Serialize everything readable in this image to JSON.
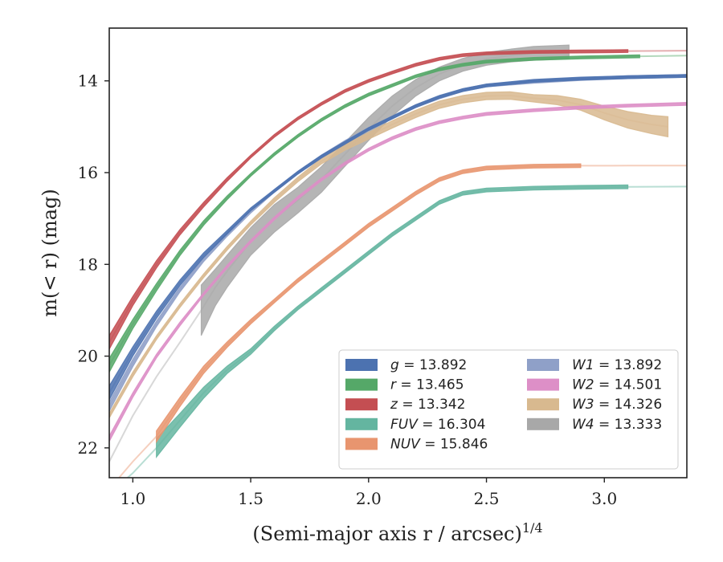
{
  "chart_data": {
    "type": "line",
    "xlabel": "(Semi-major axis r / arcsec)",
    "xlabel_exponent": "1/4",
    "ylabel": "m(< r) (mag)",
    "xlim": [
      0.9,
      3.35
    ],
    "ylim": [
      22.65,
      12.85
    ],
    "y_inverted": true,
    "x_ticks": [
      1.0,
      1.5,
      2.0,
      2.5,
      3.0
    ],
    "x_tick_labels": [
      "1.0",
      "1.5",
      "2.0",
      "2.5",
      "3.0"
    ],
    "y_ticks": [
      14,
      16,
      18,
      20,
      22
    ],
    "y_tick_labels": [
      "14",
      "16",
      "18",
      "20",
      "22"
    ],
    "grid": false,
    "legend_position": "lower-right",
    "series": [
      {
        "name": "g",
        "total": "13.892",
        "color": "#4c72b0",
        "kind": "band",
        "xmax_solid": 3.35,
        "x": [
          0.9,
          1.0,
          1.1,
          1.2,
          1.3,
          1.4,
          1.5,
          1.6,
          1.7,
          1.8,
          1.9,
          2.0,
          2.1,
          2.2,
          2.3,
          2.4,
          2.5,
          2.7,
          2.9,
          3.1,
          3.35
        ],
        "y": [
          20.8,
          19.9,
          19.1,
          18.4,
          17.8,
          17.3,
          16.8,
          16.4,
          16.0,
          15.65,
          15.35,
          15.05,
          14.8,
          14.55,
          14.35,
          14.2,
          14.1,
          14.0,
          13.95,
          13.92,
          13.892
        ],
        "half_width": [
          0.15,
          0.1,
          0.08,
          0.06,
          0.05,
          0.04,
          0.03,
          0.03,
          0.03,
          0.03,
          0.03,
          0.03,
          0.03,
          0.03,
          0.03,
          0.03,
          0.03,
          0.03,
          0.03,
          0.03,
          0.03
        ]
      },
      {
        "name": "r",
        "total": "13.465",
        "color": "#55a868",
        "kind": "band",
        "xmax_solid": 3.15,
        "x": [
          0.9,
          1.0,
          1.1,
          1.2,
          1.3,
          1.4,
          1.5,
          1.6,
          1.7,
          1.8,
          1.9,
          2.0,
          2.1,
          2.2,
          2.3,
          2.4,
          2.5,
          2.7,
          2.9,
          3.15,
          3.35
        ],
        "y": [
          20.2,
          19.3,
          18.5,
          17.75,
          17.1,
          16.55,
          16.05,
          15.6,
          15.2,
          14.85,
          14.55,
          14.3,
          14.1,
          13.9,
          13.75,
          13.65,
          13.58,
          13.52,
          13.49,
          13.465,
          13.45
        ],
        "half_width": [
          0.15,
          0.1,
          0.08,
          0.06,
          0.05,
          0.04,
          0.03,
          0.03,
          0.03,
          0.03,
          0.03,
          0.03,
          0.03,
          0.03,
          0.03,
          0.03,
          0.03,
          0.03,
          0.03,
          0.03,
          0.03
        ]
      },
      {
        "name": "z",
        "total": "13.342",
        "color": "#c44e52",
        "kind": "band",
        "xmax_solid": 3.3,
        "x": [
          0.9,
          1.0,
          1.1,
          1.2,
          1.3,
          1.4,
          1.5,
          1.6,
          1.7,
          1.8,
          1.9,
          2.0,
          2.1,
          2.2,
          2.3,
          2.4,
          2.5,
          2.7,
          2.9,
          3.1,
          3.35
        ],
        "y": [
          19.7,
          18.8,
          18.0,
          17.3,
          16.7,
          16.15,
          15.65,
          15.2,
          14.82,
          14.5,
          14.22,
          14.0,
          13.82,
          13.65,
          13.52,
          13.44,
          13.4,
          13.37,
          13.36,
          13.35,
          13.342
        ],
        "half_width": [
          0.15,
          0.1,
          0.08,
          0.06,
          0.05,
          0.04,
          0.03,
          0.03,
          0.03,
          0.03,
          0.03,
          0.03,
          0.03,
          0.03,
          0.03,
          0.03,
          0.03,
          0.03,
          0.03,
          0.03,
          0.03
        ]
      },
      {
        "name": "FUV",
        "total": "16.304",
        "color": "#64b5a0",
        "kind": "band",
        "xmax_solid": 3.22,
        "x": [
          0.9,
          1.0,
          1.1,
          1.2,
          1.3,
          1.4,
          1.5,
          1.6,
          1.7,
          1.8,
          1.9,
          2.0,
          2.1,
          2.2,
          2.3,
          2.4,
          2.5,
          2.7,
          2.9,
          3.1,
          3.35
        ],
        "y": [
          23.0,
          22.55,
          22.0,
          21.4,
          20.8,
          20.3,
          19.9,
          19.4,
          18.95,
          18.55,
          18.15,
          17.75,
          17.35,
          17.0,
          16.65,
          16.45,
          16.38,
          16.34,
          16.32,
          16.31,
          16.304
        ],
        "half_width": [
          0.15,
          0.15,
          0.2,
          0.15,
          0.12,
          0.08,
          0.06,
          0.05,
          0.04,
          0.04,
          0.04,
          0.04,
          0.04,
          0.04,
          0.04,
          0.04,
          0.04,
          0.04,
          0.04,
          0.04,
          0.04
        ]
      },
      {
        "name": "NUV",
        "total": "15.846",
        "color": "#e8956f",
        "kind": "band",
        "xmax_solid": 3.07,
        "x": [
          0.9,
          1.0,
          1.1,
          1.2,
          1.3,
          1.4,
          1.5,
          1.6,
          1.7,
          1.8,
          1.9,
          2.0,
          2.1,
          2.2,
          2.3,
          2.4,
          2.5,
          2.7,
          2.9,
          3.1,
          3.35
        ],
        "y": [
          22.9,
          22.3,
          21.75,
          21.0,
          20.3,
          19.75,
          19.25,
          18.8,
          18.35,
          17.95,
          17.55,
          17.15,
          16.8,
          16.45,
          16.15,
          15.98,
          15.9,
          15.86,
          15.85,
          15.848,
          15.846
        ],
        "half_width": [
          0.1,
          0.1,
          0.12,
          0.1,
          0.08,
          0.06,
          0.05,
          0.04,
          0.04,
          0.04,
          0.04,
          0.04,
          0.04,
          0.04,
          0.04,
          0.04,
          0.04,
          0.04,
          0.04,
          0.04,
          0.04
        ]
      },
      {
        "name": "W1",
        "total": "13.892",
        "color": "#8fa0c8",
        "kind": "band",
        "xmax_solid": 3.35,
        "x": [
          0.9,
          1.0,
          1.1,
          1.2,
          1.3,
          1.4,
          1.5,
          1.6,
          1.7,
          1.8,
          1.9,
          2.0,
          2.1,
          2.2,
          2.3,
          2.4,
          2.5,
          2.7,
          2.9,
          3.1,
          3.35
        ],
        "y": [
          21.1,
          20.15,
          19.3,
          18.55,
          17.9,
          17.35,
          16.85,
          16.4,
          16.0,
          15.65,
          15.33,
          15.05,
          14.8,
          14.55,
          14.36,
          14.2,
          14.1,
          14.02,
          13.96,
          13.92,
          13.892
        ],
        "half_width": [
          0.1,
          0.08,
          0.06,
          0.05,
          0.04,
          0.04,
          0.03,
          0.03,
          0.03,
          0.03,
          0.03,
          0.03,
          0.03,
          0.03,
          0.03,
          0.03,
          0.03,
          0.03,
          0.03,
          0.03,
          0.03
        ]
      },
      {
        "name": "W2",
        "total": "14.501",
        "color": "#dd8fc7",
        "kind": "band",
        "xmax_solid": 3.35,
        "x": [
          0.9,
          1.0,
          1.1,
          1.2,
          1.3,
          1.4,
          1.5,
          1.6,
          1.7,
          1.8,
          1.9,
          2.0,
          2.1,
          2.2,
          2.3,
          2.4,
          2.5,
          2.7,
          2.9,
          3.1,
          3.35
        ],
        "y": [
          21.8,
          20.85,
          20.0,
          19.3,
          18.65,
          18.05,
          17.5,
          17.0,
          16.55,
          16.15,
          15.8,
          15.5,
          15.25,
          15.05,
          14.9,
          14.8,
          14.72,
          14.64,
          14.58,
          14.54,
          14.501
        ],
        "half_width": [
          0.06,
          0.05,
          0.04,
          0.04,
          0.03,
          0.03,
          0.03,
          0.03,
          0.03,
          0.03,
          0.03,
          0.03,
          0.03,
          0.03,
          0.03,
          0.03,
          0.03,
          0.03,
          0.03,
          0.03,
          0.03
        ]
      },
      {
        "name": "W3",
        "total": "14.326",
        "color": "#d8b98f",
        "kind": "band",
        "xmax_solid": 3.27,
        "x": [
          0.9,
          1.0,
          1.1,
          1.2,
          1.3,
          1.4,
          1.5,
          1.6,
          1.7,
          1.8,
          1.9,
          2.0,
          2.1,
          2.2,
          2.3,
          2.4,
          2.5,
          2.6,
          2.7,
          2.8,
          2.9,
          3.0,
          3.1,
          3.2,
          3.27
        ],
        "y": [
          21.3,
          20.4,
          19.6,
          18.9,
          18.25,
          17.65,
          17.1,
          16.6,
          16.15,
          15.75,
          15.45,
          15.2,
          14.95,
          14.72,
          14.52,
          14.4,
          14.33,
          14.32,
          14.38,
          14.42,
          14.52,
          14.7,
          14.85,
          14.95,
          15.0
        ],
        "half_width": [
          0.05,
          0.05,
          0.04,
          0.04,
          0.04,
          0.04,
          0.04,
          0.05,
          0.05,
          0.06,
          0.06,
          0.07,
          0.08,
          0.08,
          0.08,
          0.08,
          0.08,
          0.08,
          0.08,
          0.1,
          0.12,
          0.15,
          0.18,
          0.2,
          0.22
        ]
      },
      {
        "name": "W4",
        "total": "13.333",
        "color": "#a8a8a8",
        "kind": "band",
        "xmax_solid": 2.85,
        "x": [
          0.9,
          1.0,
          1.1,
          1.2,
          1.29,
          1.35,
          1.4,
          1.5,
          1.6,
          1.7,
          1.8,
          1.9,
          2.0,
          2.1,
          2.2,
          2.3,
          2.4,
          2.5,
          2.6,
          2.7,
          2.8,
          2.85
        ],
        "y": [
          22.3,
          21.3,
          20.45,
          19.7,
          19.0,
          18.5,
          18.15,
          17.5,
          17.0,
          16.6,
          16.15,
          15.6,
          15.05,
          14.55,
          14.15,
          13.85,
          13.65,
          13.52,
          13.45,
          13.4,
          13.38,
          13.37
        ],
        "half_width": [
          0.05,
          0.05,
          0.05,
          0.05,
          0.55,
          0.4,
          0.35,
          0.3,
          0.3,
          0.28,
          0.28,
          0.26,
          0.25,
          0.22,
          0.18,
          0.15,
          0.14,
          0.14,
          0.14,
          0.15,
          0.15,
          0.15
        ]
      }
    ],
    "legend": [
      {
        "label": "g",
        "value": "13.892",
        "color": "#4c72b0"
      },
      {
        "label": "r",
        "value": "13.465",
        "color": "#55a868"
      },
      {
        "label": "z",
        "value": "13.342",
        "color": "#c44e52"
      },
      {
        "label": "FUV",
        "value": "16.304",
        "color": "#64b5a0"
      },
      {
        "label": "NUV",
        "value": "15.846",
        "color": "#e8956f"
      },
      {
        "label": "W1",
        "value": "13.892",
        "color": "#8fa0c8"
      },
      {
        "label": "W2",
        "value": "14.501",
        "color": "#dd8fc7"
      },
      {
        "label": "W3",
        "value": "14.326",
        "color": "#d8b98f"
      },
      {
        "label": "W4",
        "value": "13.333",
        "color": "#a8a8a8"
      }
    ]
  }
}
